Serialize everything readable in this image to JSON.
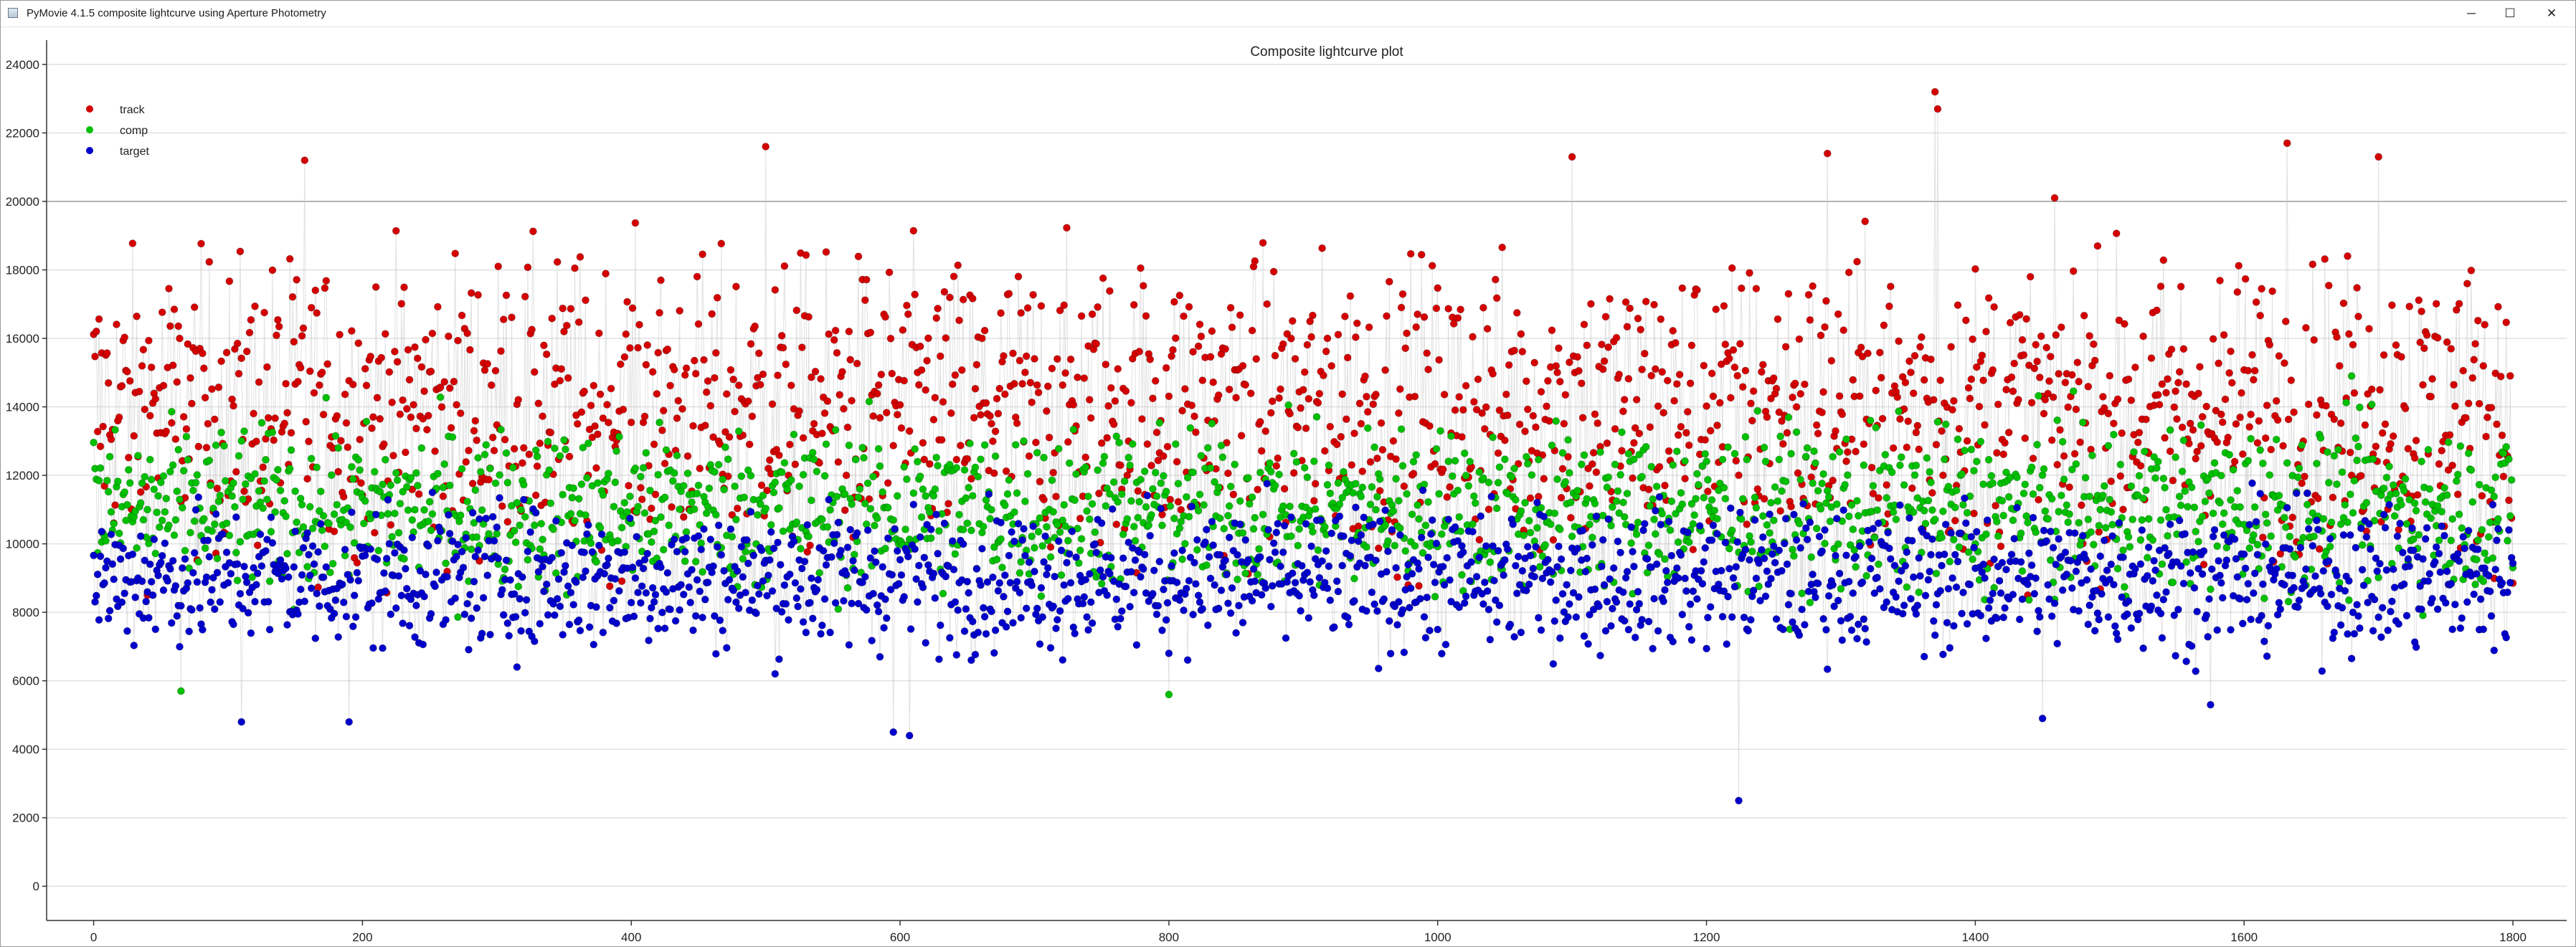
{
  "window": {
    "title": "PyMovie 4.1.5 composite lightcurve using Aperture Photometry",
    "minimize_glyph": "─",
    "maximize_glyph": "☐",
    "close_glyph": "✕"
  },
  "chart_data": {
    "type": "scatter",
    "title": "Composite lightcurve plot",
    "xlabel": "",
    "ylabel": "",
    "xlim": [
      -35,
      1840
    ],
    "ylim": [
      -1000,
      24500
    ],
    "x_ticks": [
      0,
      200,
      400,
      600,
      800,
      1000,
      1200,
      1400,
      1600,
      1800
    ],
    "y_ticks": [
      0,
      2000,
      4000,
      6000,
      8000,
      10000,
      12000,
      14000,
      16000,
      18000,
      20000,
      22000,
      24000
    ],
    "grid": true,
    "legend_position": "top-left",
    "connector_color": "#c8c8c8",
    "frame_count": 1800,
    "series": [
      {
        "name": "track",
        "color": "#d40000",
        "typical_range": [
          8000,
          20500
        ],
        "notable_points": [
          {
            "x": 157,
            "y": 21200
          },
          {
            "x": 500,
            "y": 21600
          },
          {
            "x": 1100,
            "y": 21300
          },
          {
            "x": 1290,
            "y": 21400
          },
          {
            "x": 1370,
            "y": 23200
          },
          {
            "x": 1372,
            "y": 22700
          },
          {
            "x": 1632,
            "y": 21700
          },
          {
            "x": 1700,
            "y": 21300
          }
        ]
      },
      {
        "name": "comp",
        "color": "#00c000",
        "typical_range": [
          6000,
          14500
        ],
        "notable_points": [
          {
            "x": 65,
            "y": 5700
          },
          {
            "x": 800,
            "y": 5600
          },
          {
            "x": 1680,
            "y": 14900
          }
        ]
      },
      {
        "name": "target",
        "color": "#0000cc",
        "typical_range": [
          5800,
          12500
        ],
        "notable_points": [
          {
            "x": 110,
            "y": 4800
          },
          {
            "x": 190,
            "y": 4800
          },
          {
            "x": 595,
            "y": 4500
          },
          {
            "x": 607,
            "y": 4400
          },
          {
            "x": 1224,
            "y": 2500
          },
          {
            "x": 1450,
            "y": 4900
          },
          {
            "x": 1575,
            "y": 5300
          }
        ]
      }
    ]
  }
}
